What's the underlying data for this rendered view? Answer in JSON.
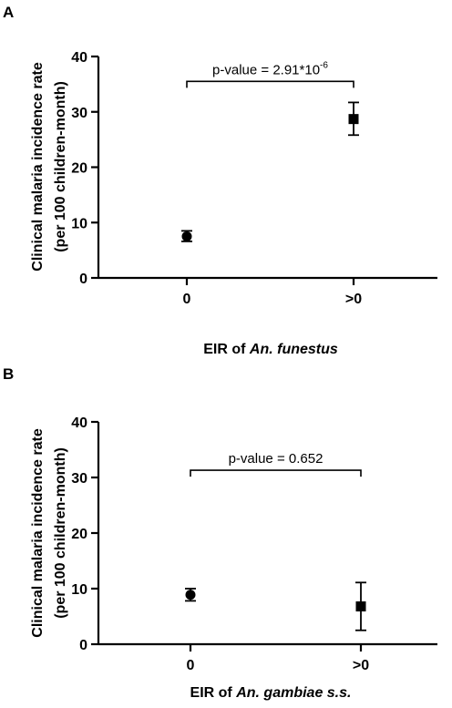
{
  "chart_data": [
    {
      "panel_label": "A",
      "type": "scatter",
      "categories": [
        "0",
        ">0"
      ],
      "series": [
        {
          "marker": "circle",
          "category": "0",
          "value": 7.5,
          "err_low": 6.6,
          "err_high": 8.5
        },
        {
          "marker": "square",
          "category": ">0",
          "value": 28.7,
          "err_low": 25.8,
          "err_high": 31.7
        }
      ],
      "xlabel_plain": "EIR of ",
      "xlabel_italic": "An. funestus",
      "ylabel_line1": "Clinical malaria incidence rate",
      "ylabel_line2": "(per 100 children-month)",
      "ylim": [
        0,
        40
      ],
      "yticks": [
        "0",
        "10",
        "20",
        "30",
        "40"
      ],
      "annotation": {
        "text": "p-value = 2.91*10",
        "superscript": "-6",
        "bracket_y": 35.5
      },
      "grid": false
    },
    {
      "panel_label": "B",
      "type": "scatter",
      "categories": [
        "0",
        ">0"
      ],
      "series": [
        {
          "marker": "circle",
          "category": "0",
          "value": 8.9,
          "err_low": 7.8,
          "err_high": 10.0
        },
        {
          "marker": "square",
          "category": ">0",
          "value": 6.8,
          "err_low": 2.5,
          "err_high": 11.1
        }
      ],
      "xlabel_plain": "EIR of ",
      "xlabel_italic": "An. gambiae s.s.",
      "ylabel_line1": "Clinical malaria incidence rate",
      "ylabel_line2": "(per 100 children-month)",
      "ylim": [
        0,
        40
      ],
      "yticks": [
        "0",
        "10",
        "20",
        "30",
        "40"
      ],
      "annotation": {
        "text": "p-value = 0.652",
        "superscript": "",
        "bracket_y": 31.3
      },
      "grid": false
    }
  ]
}
